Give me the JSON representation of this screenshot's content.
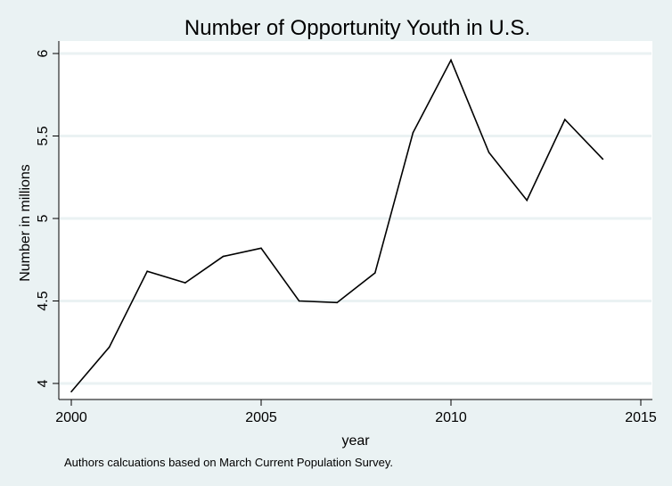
{
  "chart_data": {
    "type": "line",
    "title": "Number of Opportunity Youth in U.S.",
    "xlabel": "year",
    "ylabel": "Number in millions",
    "note": "Authors calcuations based on March Current Population Survey.",
    "x": [
      2000,
      2001,
      2002,
      2003,
      2004,
      2005,
      2006,
      2007,
      2008,
      2009,
      2010,
      2011,
      2012,
      2013,
      2014
    ],
    "series": [
      {
        "values": [
          3.95,
          4.22,
          4.68,
          4.61,
          4.77,
          4.82,
          4.5,
          4.49,
          4.67,
          5.52,
          5.96,
          5.4,
          5.11,
          5.6,
          5.36
        ]
      }
    ],
    "xlim": [
      2000,
      2015
    ],
    "ylim": [
      4,
      6
    ],
    "x_ticks": [
      "2000",
      "2005",
      "2010",
      "2015"
    ],
    "y_ticks": [
      "4",
      "4.5",
      "5",
      "5.5",
      "6"
    ],
    "grid": true,
    "legend": "none",
    "colors": {
      "background": "#eaf2f3",
      "plot_background": "#ffffff",
      "grid": "#eaf2f3",
      "line": "#000000",
      "axis": "#000000"
    }
  }
}
